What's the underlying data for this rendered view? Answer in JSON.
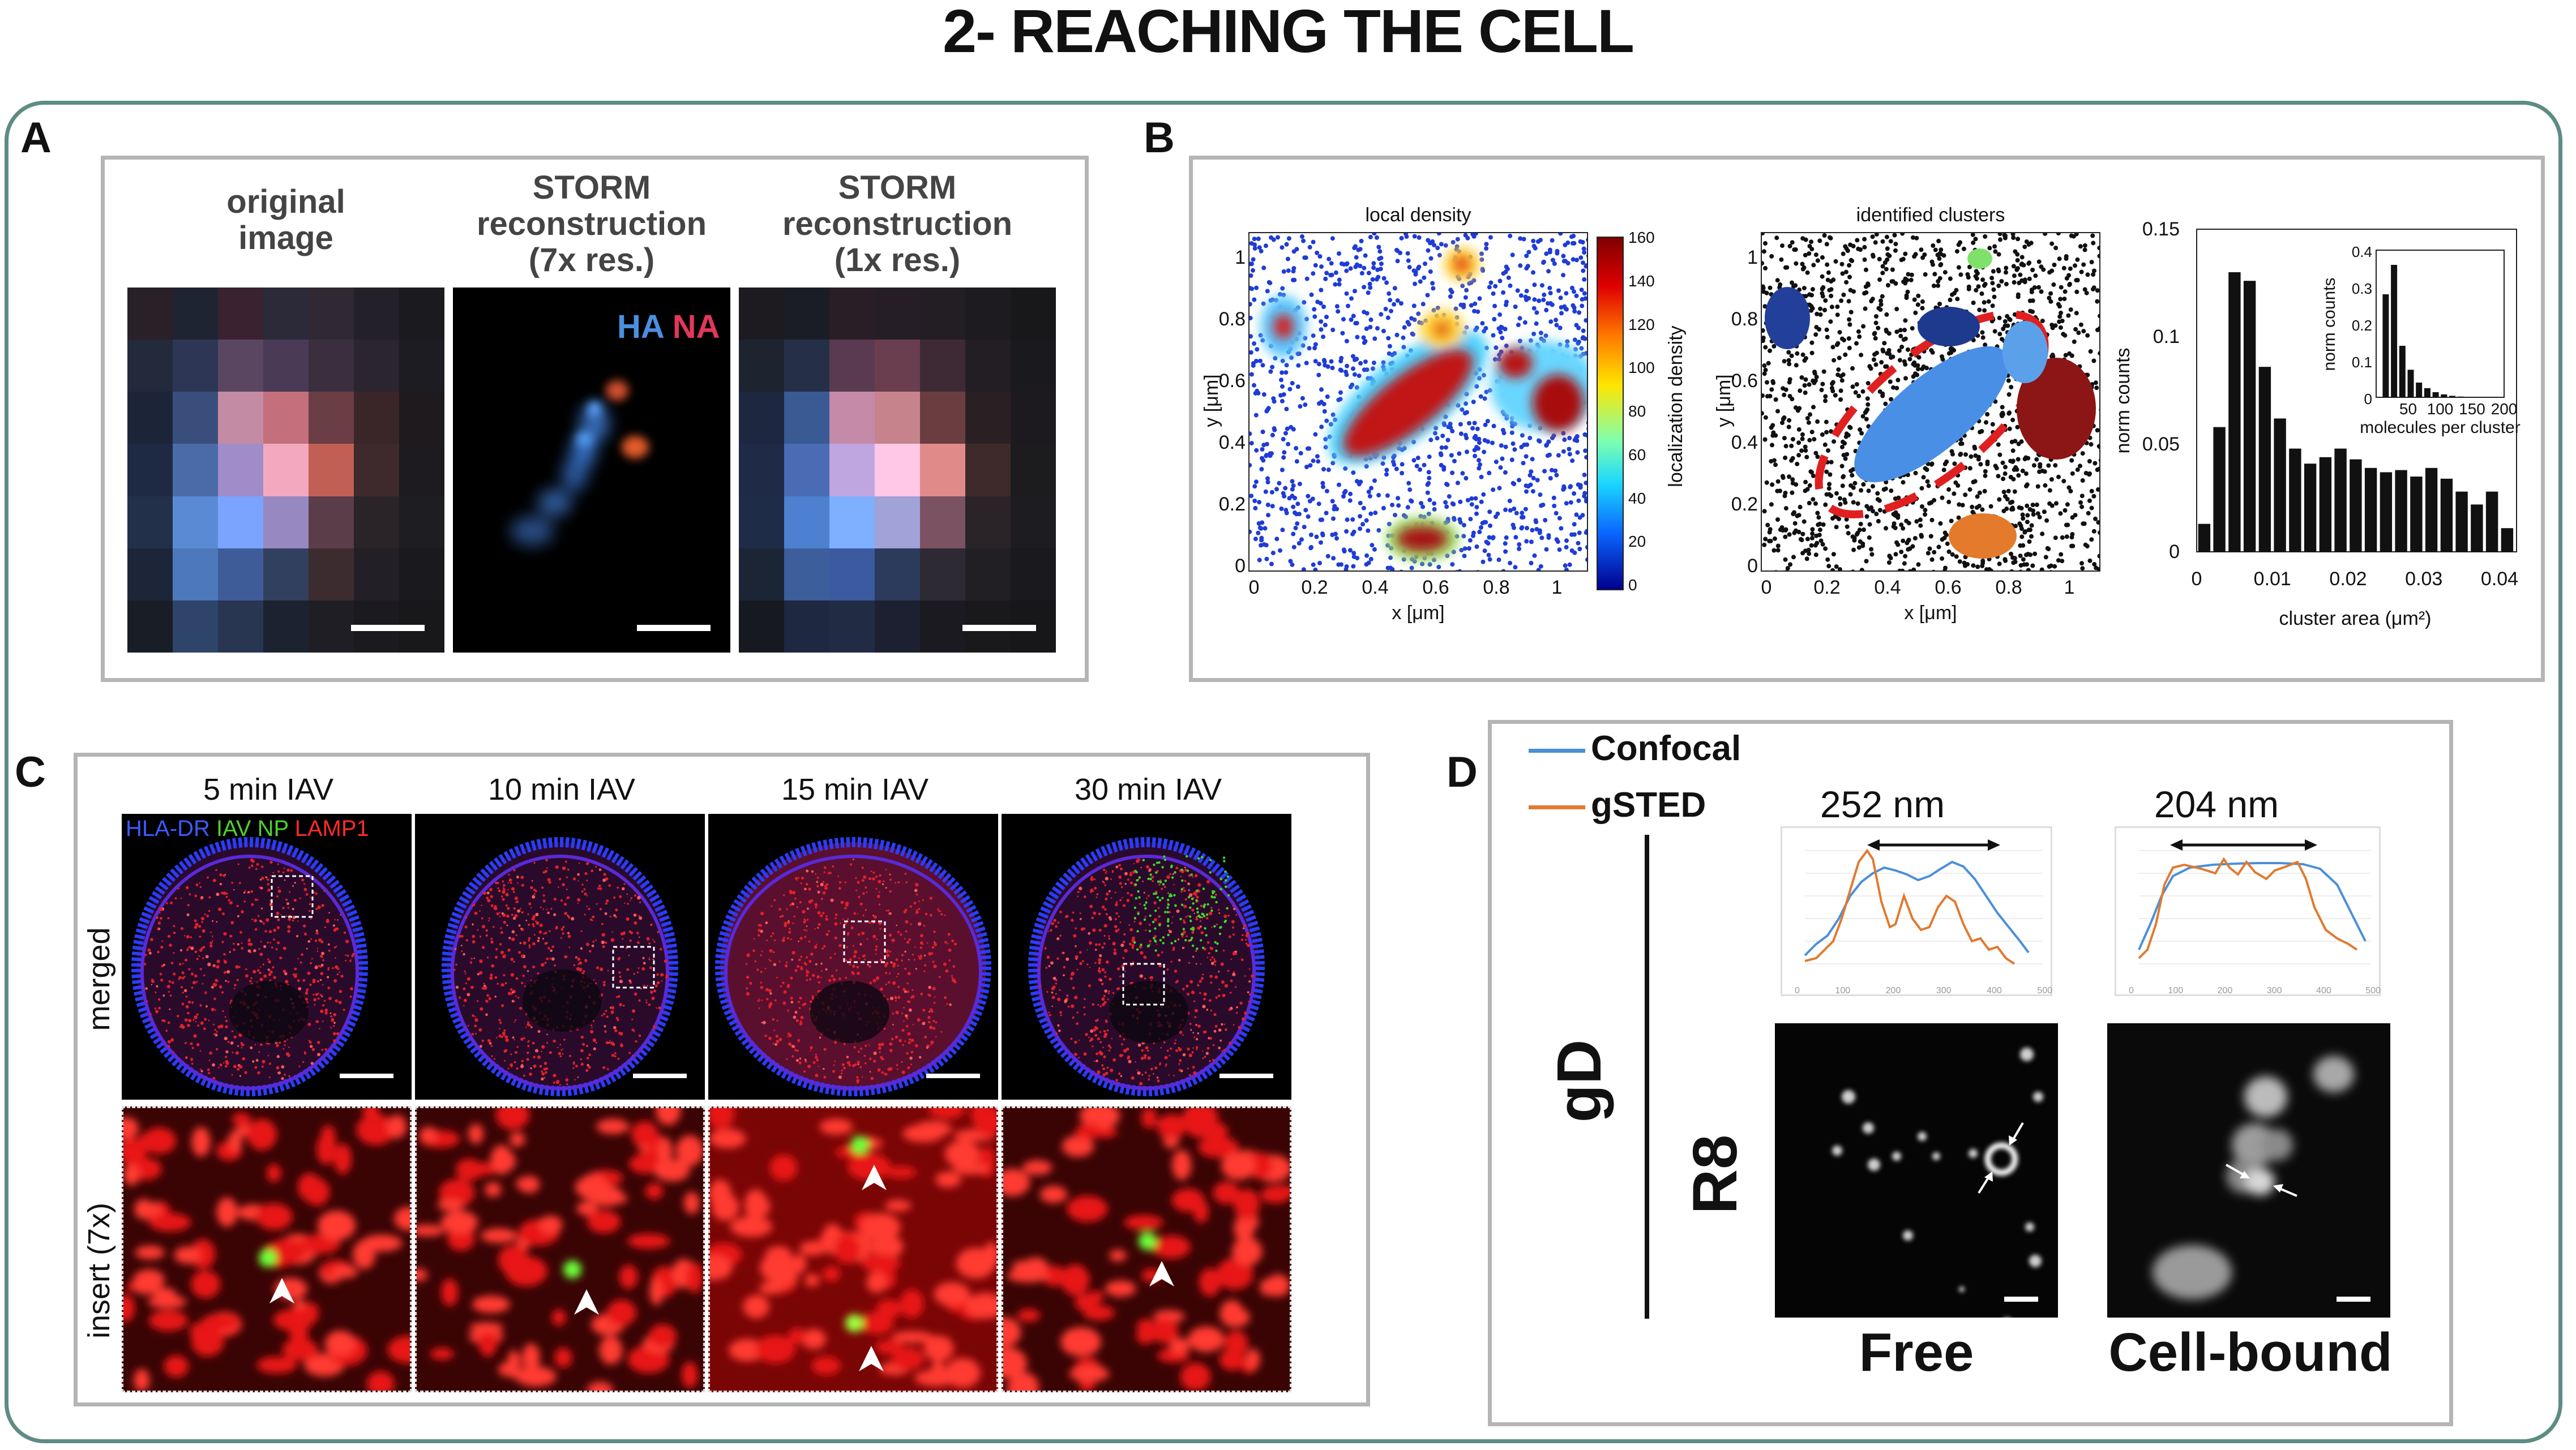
{
  "title": "2- REACHING THE CELL",
  "panels": {
    "a": {
      "label": "A",
      "col1": "original\nimage",
      "col2": "STORM\nreconstruction\n(7x res.)",
      "col3": "STORM\nreconstruction\n(1x res.)",
      "legend_ha": "HA",
      "legend_na": "NA",
      "colors": {
        "ha": "#4a8fe0",
        "na": "#e0385a"
      }
    },
    "b": {
      "label": "B",
      "density_title": "local density",
      "clusters_title": "identified clusters",
      "x_label": "x [μm]",
      "y_label": "y [μm]",
      "colorbar_label": "localization density",
      "colorbar_ticks": [
        "160",
        "140",
        "120",
        "100",
        "80",
        "60",
        "40",
        "20",
        "0"
      ],
      "x_ticks": [
        "0",
        "0.2",
        "0.4",
        "0.6",
        "0.8",
        "1"
      ],
      "y_ticks": [
        "1",
        "0.8",
        "0.6",
        "0.4",
        "0.2",
        "0"
      ],
      "hist_xlabel": "cluster area (μm²)",
      "hist_ylabel": "norm counts",
      "hist_xticks": [
        "0",
        "0.01",
        "0.02",
        "0.03",
        "0.04"
      ],
      "hist_yticks": [
        "0.15",
        "0.1",
        "0.05",
        "0"
      ],
      "inset_xlabel": "molecules per cluster",
      "inset_ylabel": "norm counts",
      "inset_xticks": [
        "50",
        "100",
        "150",
        "200"
      ],
      "inset_yticks": [
        "0.4",
        "0.3",
        "0.2",
        "0.1",
        "0"
      ]
    },
    "c": {
      "label": "C",
      "columns": [
        "5 min IAV",
        "10 min IAV",
        "15 min IAV",
        "30 min IAV"
      ],
      "rows": [
        "merged",
        "insert (7x)"
      ],
      "legend": {
        "hla": "HLA-DR",
        "iav": "IAV NP",
        "lamp": "LAMP1"
      },
      "colors": {
        "hla": "#3a5cff",
        "iav": "#4fd12c",
        "lamp": "#ff2a2a"
      }
    },
    "d": {
      "label": "D",
      "legend_confocal": "Confocal",
      "legend_gsted": "gSTED",
      "colors": {
        "confocal": "#4a8fd8",
        "gsted": "#e07a30"
      },
      "gd_label": "gD",
      "r8_label": "R8",
      "profile1_label": "252 nm",
      "profile2_label": "204 nm",
      "free_label": "Free",
      "bound_label": "Cell-bound",
      "profile_xticks": [
        "0",
        "100",
        "200",
        "300",
        "400",
        "500"
      ]
    }
  },
  "chart_data": [
    {
      "type": "bar",
      "title": "",
      "xlabel": "cluster area (μm²)",
      "ylabel": "norm counts",
      "xlim": [
        0,
        0.04
      ],
      "ylim": [
        0,
        0.15
      ],
      "bin_width": 0.002,
      "x": [
        0.001,
        0.003,
        0.005,
        0.007,
        0.009,
        0.011,
        0.013,
        0.015,
        0.017,
        0.019,
        0.021,
        0.023,
        0.025,
        0.027,
        0.029,
        0.031,
        0.033,
        0.035,
        0.037,
        0.039,
        0.041
      ],
      "values": [
        0.013,
        0.058,
        0.13,
        0.126,
        0.086,
        0.062,
        0.048,
        0.041,
        0.044,
        0.048,
        0.043,
        0.039,
        0.037,
        0.038,
        0.035,
        0.039,
        0.034,
        0.028,
        0.022,
        0.028,
        0.011
      ]
    },
    {
      "type": "bar",
      "title": "",
      "xlabel": "molecules per cluster",
      "ylabel": "norm counts",
      "xlim": [
        0,
        200
      ],
      "ylim": [
        0,
        0.4
      ],
      "x": [
        15,
        28,
        41,
        54,
        67,
        80,
        93,
        106,
        119,
        132
      ],
      "values": [
        0.28,
        0.36,
        0.14,
        0.075,
        0.04,
        0.025,
        0.014,
        0.008,
        0.004,
        0.002
      ]
    }
  ]
}
